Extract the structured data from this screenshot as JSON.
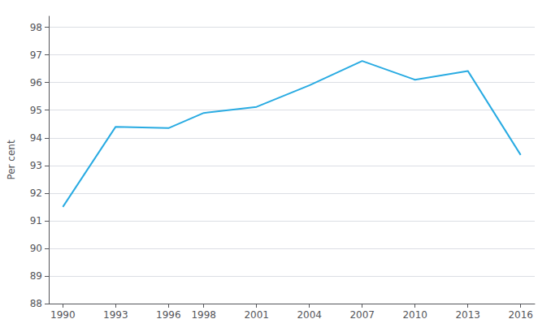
{
  "chart_data": {
    "type": "line",
    "x": [
      1990,
      1993,
      1996,
      1998,
      2001,
      2004,
      2007,
      2010,
      2013,
      2016
    ],
    "values": [
      91.5,
      94.4,
      94.35,
      94.9,
      95.12,
      95.9,
      96.78,
      96.1,
      96.42,
      93.38
    ],
    "color": "#29ABE2",
    "ylabel": "Per cent",
    "xlim": [
      1989.2,
      2016.8
    ],
    "xticks": [
      1990,
      1993,
      1996,
      1998,
      2001,
      2004,
      2007,
      2010,
      2013,
      2016
    ],
    "ylim": [
      88,
      98.4
    ],
    "yticks": [
      88,
      89,
      90,
      91,
      92,
      93,
      94,
      95,
      96,
      97,
      98
    ],
    "grid": true
  }
}
